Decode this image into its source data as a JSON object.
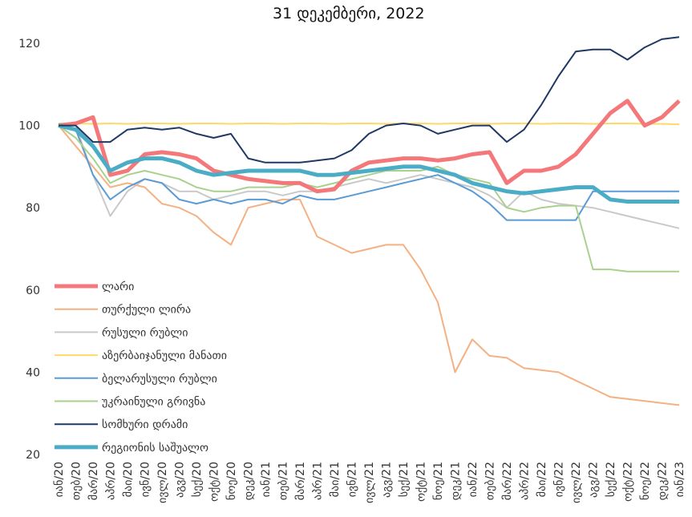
{
  "chart_data": {
    "type": "line",
    "title": "31 დეკემბერი, 2022",
    "categories": [
      "იან/20",
      "თებ/20",
      "მარ/20",
      "აპრ/20",
      "მაი/20",
      "ივნ/20",
      "ივლ/20",
      "აგვ/20",
      "სექ/20",
      "ოქტ/20",
      "ნოე/20",
      "დეკ/20",
      "იან/21",
      "თებ/21",
      "მარ/21",
      "აპრ/21",
      "მაი/21",
      "ივნ/21",
      "ივლ/21",
      "აგვ/21",
      "სექ/21",
      "ოქტ/21",
      "ნოე/21",
      "დეკ/21",
      "იან/22",
      "თებ/22",
      "მარ/22",
      "აპრ/22",
      "მაი/22",
      "ივნ/22",
      "ივლ/22",
      "აგვ/22",
      "სექ/22",
      "ოქტ/22",
      "ნოე/22",
      "დეკ/22",
      "იან/23"
    ],
    "ylim": [
      20,
      120
    ],
    "yticks": [
      20,
      40,
      60,
      80,
      100,
      120
    ],
    "grid": false,
    "legend": "left",
    "series": [
      {
        "name": "ლარი",
        "color": "#f4777a",
        "width": 5,
        "values": [
          100,
          100.5,
          102,
          88,
          89,
          93,
          93.5,
          93,
          92,
          89,
          88,
          87,
          86.5,
          86,
          86,
          84,
          84.5,
          89,
          91,
          91.5,
          92,
          92,
          91.5,
          92,
          93,
          93.5,
          86,
          89,
          89,
          90,
          93,
          98,
          103,
          106,
          100,
          102,
          106
        ]
      },
      {
        "name": "თურქული ლირა",
        "color": "#f4b183",
        "width": 2,
        "values": [
          100,
          95,
          90,
          85,
          86,
          85,
          81,
          80,
          78,
          74,
          71,
          80,
          81,
          82,
          82,
          73,
          71,
          69,
          70,
          71,
          71,
          65,
          57,
          40,
          48,
          44,
          43.5,
          41,
          40.5,
          40,
          38,
          36,
          34,
          33.5,
          33,
          32.5,
          32
        ]
      },
      {
        "name": "რუსული რუბლი",
        "color": "#c9c9c9",
        "width": 2,
        "values": [
          100,
          100,
          88,
          78,
          84,
          87,
          86,
          84,
          84,
          82,
          83,
          84,
          84,
          83,
          84,
          84,
          85,
          86,
          87,
          86,
          87,
          88,
          87,
          86,
          85,
          83,
          80,
          84,
          82,
          81,
          80.5,
          80,
          79,
          78,
          77,
          76,
          75
        ]
      },
      {
        "name": "აზერბაიჯანული მანათი",
        "color": "#ffd966",
        "width": 2,
        "values": [
          100.5,
          100.5,
          100.4,
          100.5,
          100.4,
          100.5,
          100.5,
          100.4,
          100.5,
          100.5,
          100.4,
          100.5,
          100.5,
          100.4,
          100.5,
          100.5,
          100.4,
          100.5,
          100.5,
          100.4,
          100.5,
          100.5,
          100.4,
          100.5,
          100.5,
          100.4,
          100.5,
          100.5,
          100.4,
          100.5,
          100.5,
          100.4,
          100.5,
          100.5,
          100.4,
          100.4,
          100.3
        ]
      },
      {
        "name": "ბელარუსული რუბლი",
        "color": "#5b9bd5",
        "width": 2,
        "values": [
          100,
          99,
          88,
          82,
          85,
          87,
          86,
          82,
          81,
          82,
          81,
          82,
          82,
          81,
          83,
          82,
          82,
          83,
          84,
          85,
          86,
          87,
          88,
          86,
          84,
          81,
          77,
          77,
          77,
          77,
          77,
          84,
          84,
          84,
          84,
          84,
          84
        ]
      },
      {
        "name": "უკრაინული გრივნა",
        "color": "#a9d18e",
        "width": 2,
        "values": [
          100,
          97,
          92,
          86,
          88,
          89,
          88,
          87,
          85,
          84,
          84,
          85,
          85,
          85,
          86,
          85,
          86,
          87,
          88,
          89,
          89,
          89,
          90,
          88,
          87,
          86,
          80,
          79,
          80,
          80.5,
          80.5,
          65,
          65,
          64.5,
          64.5,
          64.5,
          64.5
        ]
      },
      {
        "name": "სომხური დრამი",
        "color": "#1f3864",
        "width": 2,
        "values": [
          100,
          100,
          96,
          96,
          99,
          99.5,
          99,
          99.5,
          98,
          97,
          98,
          92,
          91,
          91,
          91,
          91.5,
          92,
          94,
          98,
          100,
          100.5,
          100,
          98,
          99,
          100,
          100,
          96,
          99,
          105,
          112,
          118,
          118.5,
          118.5,
          116,
          119,
          121,
          121.5
        ]
      },
      {
        "name": "რეგიონის საშუალო",
        "color": "#4bacc6",
        "width": 5,
        "values": [
          100,
          99,
          95,
          89,
          91,
          92,
          92,
          91,
          89,
          88,
          88.5,
          89,
          89,
          89,
          89,
          88,
          88,
          88.5,
          89,
          89.5,
          90,
          90,
          89,
          88,
          86,
          85,
          84,
          83.5,
          84,
          84.5,
          85,
          85,
          82,
          81.5,
          81.5,
          81.5,
          81.5
        ]
      }
    ]
  }
}
